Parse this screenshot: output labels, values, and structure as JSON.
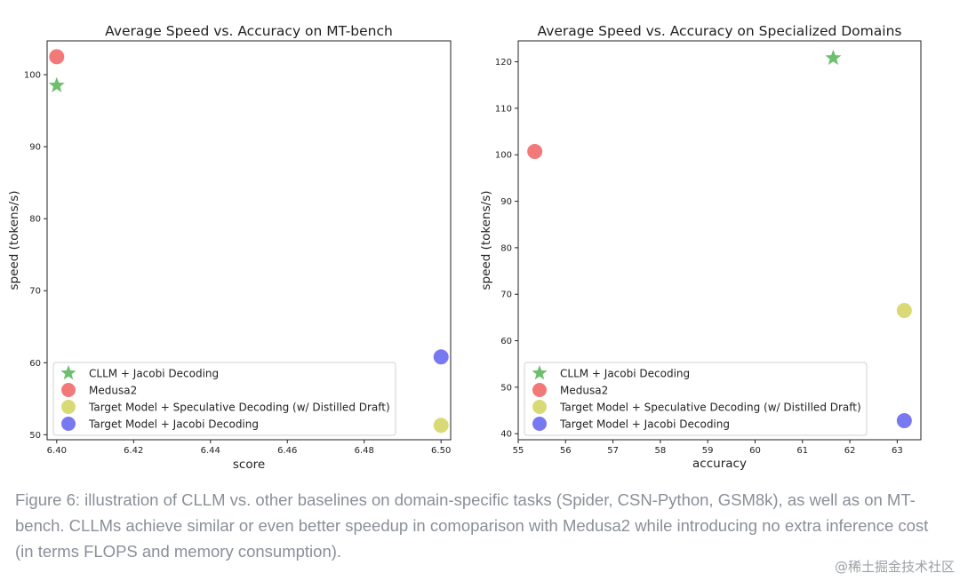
{
  "chart_data": [
    {
      "type": "scatter",
      "title": "Average Speed vs. Accuracy on MT-bench",
      "xlabel": "score",
      "ylabel": "speed (tokens/s)",
      "xlim": [
        6.3975,
        6.5025
      ],
      "ylim": [
        49.3,
        104.7
      ],
      "xticks": [
        "6.40",
        "6.42",
        "6.44",
        "6.46",
        "6.48",
        "6.50"
      ],
      "yticks": [
        "50",
        "60",
        "70",
        "80",
        "90",
        "100"
      ],
      "legend_position": "lower-left",
      "series": [
        {
          "name": "CLLM + Jacobi Decoding",
          "marker": "star",
          "color": "#5cb85c",
          "x": 6.4,
          "y": 98.5
        },
        {
          "name": "Medusa2",
          "marker": "circle",
          "color": "#f06262",
          "x": 6.4,
          "y": 102.5
        },
        {
          "name": "Target Model + Speculative Decoding (w/ Distilled Draft)",
          "marker": "circle",
          "color": "#d2d45e",
          "x": 6.5,
          "y": 51.3
        },
        {
          "name": "Target Model + Jacobi Decoding",
          "marker": "circle",
          "color": "#6060ef",
          "x": 6.5,
          "y": 60.8
        }
      ]
    },
    {
      "type": "scatter",
      "title": "Average Speed vs. Accuracy on Specialized Domains",
      "xlabel": "accuracy",
      "ylabel": "speed (tokens/s)",
      "xlim": [
        55.0,
        63.5
      ],
      "ylim": [
        38.7,
        124.5
      ],
      "xticks": [
        "55",
        "56",
        "57",
        "58",
        "59",
        "60",
        "61",
        "62",
        "63"
      ],
      "yticks": [
        "40",
        "50",
        "60",
        "70",
        "80",
        "90",
        "100",
        "110",
        "120"
      ],
      "legend_position": "lower-left",
      "series": [
        {
          "name": "CLLM + Jacobi Decoding",
          "marker": "star",
          "color": "#5cb85c",
          "x": 61.65,
          "y": 120.8
        },
        {
          "name": "Medusa2",
          "marker": "circle",
          "color": "#f06262",
          "x": 55.35,
          "y": 100.7
        },
        {
          "name": "Target Model + Speculative Decoding (w/ Distilled Draft)",
          "marker": "circle",
          "color": "#d2d45e",
          "x": 63.15,
          "y": 66.5
        },
        {
          "name": "Target Model + Jacobi Decoding",
          "marker": "circle",
          "color": "#6060ef",
          "x": 63.15,
          "y": 42.8
        }
      ]
    }
  ],
  "caption": "Figure 6: illustration of CLLM vs. other baselines on domain-specific tasks (Spider, CSN-Python, GSM8k), as well as on MT-bench. CLLMs achieve similar or even better speedup in comoparison with Medusa2 while introducing no extra inference cost (in terms FLOPS and memory consumption).",
  "watermark": "@稀土掘金技术社区"
}
